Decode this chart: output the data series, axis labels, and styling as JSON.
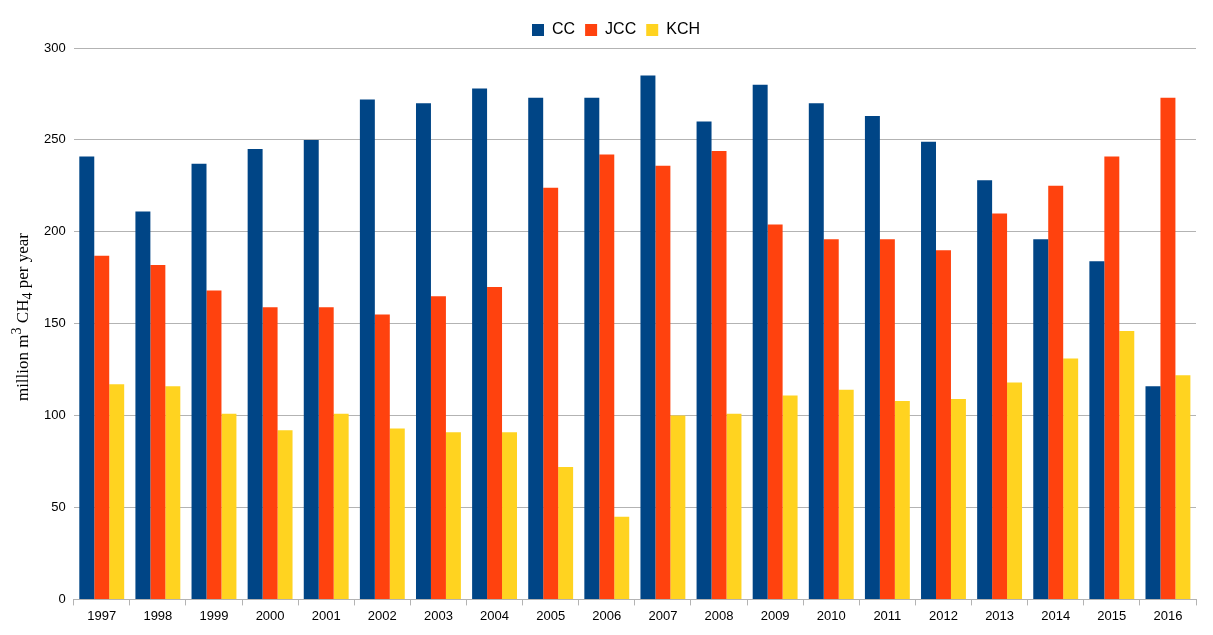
{
  "chart_data": {
    "type": "bar",
    "ylabel": "million m$^{3}$ CH$_{4}$ per year",
    "categories": [
      "1997",
      "1998",
      "1999",
      "2000",
      "2001",
      "2002",
      "2003",
      "2004",
      "2005",
      "2006",
      "2007",
      "2008",
      "2009",
      "2010",
      "2011",
      "2012",
      "2013",
      "2014",
      "2015",
      "2016"
    ],
    "series": [
      {
        "name": "CC",
        "color": "#004586",
        "values": [
          241,
          211,
          237,
          245,
          250,
          272,
          270,
          278,
          273,
          273,
          285,
          260,
          280,
          270,
          263,
          249,
          228,
          196,
          184,
          116
        ]
      },
      {
        "name": "JCC",
        "color": "#ff420e",
        "values": [
          187,
          182,
          168,
          159,
          159,
          155,
          165,
          170,
          224,
          242,
          236,
          244,
          204,
          196,
          196,
          190,
          210,
          225,
          241,
          273
        ]
      },
      {
        "name": "KCH",
        "color": "#ffd320",
        "values": [
          117,
          116,
          101,
          92,
          101,
          93,
          91,
          91,
          72,
          45,
          100,
          101,
          111,
          114,
          108,
          109,
          118,
          131,
          146,
          122
        ]
      }
    ],
    "ylim": [
      0,
      300
    ],
    "yticks": [
      0,
      50,
      100,
      150,
      200,
      250,
      300
    ],
    "grid": "y",
    "legend": "top"
  }
}
